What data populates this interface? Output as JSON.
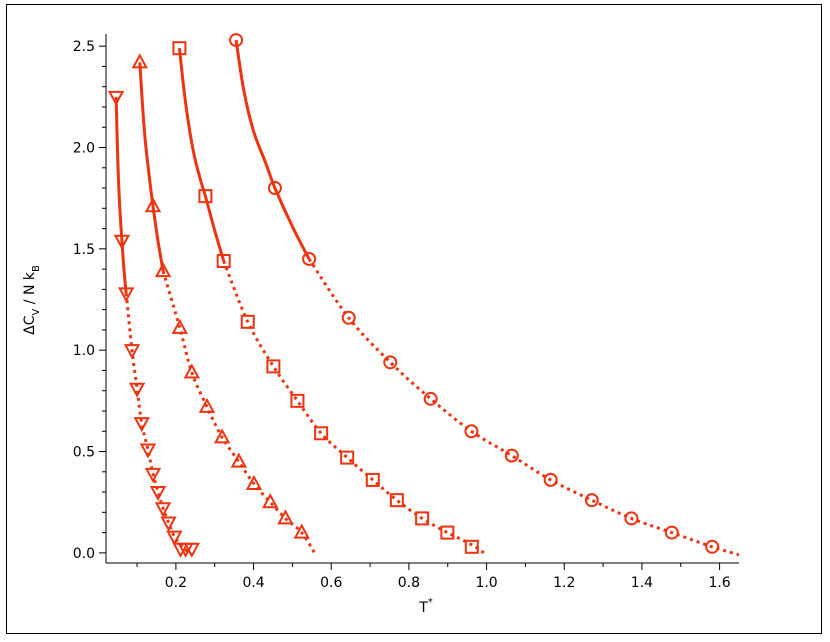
{
  "chart_data": {
    "type": "line",
    "title": "",
    "xlabel": "T*",
    "ylabel": "ΔC_V / N k_B",
    "xlim": [
      0.02,
      1.65
    ],
    "ylim": [
      -0.05,
      2.56
    ],
    "xticks": [
      0.2,
      0.4,
      0.6,
      0.8,
      1.0,
      1.2,
      1.4,
      1.6
    ],
    "xtick_labels": [
      "0.2",
      "0.4",
      "0.6",
      "0.8",
      "1.0",
      "1.2",
      "1.4",
      "1.6"
    ],
    "yticks": [
      0.0,
      0.5,
      1.0,
      1.5,
      2.0,
      2.5
    ],
    "ytick_labels": [
      "0.0",
      "0.5",
      "1.0",
      "1.5",
      "2.0",
      "2.5"
    ],
    "grid": false,
    "color": "#ee3311",
    "series": [
      {
        "marker": "triangle-down",
        "x": [
          0.046,
          0.061,
          0.072,
          0.087,
          0.1,
          0.112,
          0.128,
          0.141,
          0.154,
          0.167,
          0.181,
          0.196,
          0.212,
          0.225,
          0.241
        ],
        "y": [
          2.25,
          1.54,
          1.28,
          1.0,
          0.81,
          0.64,
          0.51,
          0.39,
          0.3,
          0.22,
          0.15,
          0.08,
          0.02,
          0.02,
          0.02
        ],
        "solid_curve": {
          "x": [
            0.046,
            0.05,
            0.055,
            0.061,
            0.066,
            0.072
          ],
          "y": [
            2.25,
            1.95,
            1.72,
            1.54,
            1.4,
            1.28
          ]
        },
        "dotted_curve": {
          "x": [
            0.072,
            0.087,
            0.1,
            0.112,
            0.128,
            0.141,
            0.154,
            0.167,
            0.181,
            0.196,
            0.212,
            0.225,
            0.241
          ],
          "y": [
            1.28,
            1.0,
            0.81,
            0.64,
            0.51,
            0.39,
            0.3,
            0.22,
            0.15,
            0.08,
            0.04,
            0.015,
            -0.01
          ]
        }
      },
      {
        "marker": "triangle-up",
        "x": [
          0.107,
          0.141,
          0.167,
          0.21,
          0.241,
          0.28,
          0.319,
          0.362,
          0.401,
          0.443,
          0.482,
          0.524
        ],
        "y": [
          2.42,
          1.71,
          1.39,
          1.11,
          0.89,
          0.72,
          0.57,
          0.45,
          0.34,
          0.25,
          0.17,
          0.1
        ],
        "solid_curve": {
          "x": [
            0.107,
            0.118,
            0.13,
            0.141,
            0.153,
            0.167
          ],
          "y": [
            2.42,
            2.1,
            1.88,
            1.71,
            1.55,
            1.39
          ]
        },
        "dotted_curve": {
          "x": [
            0.167,
            0.21,
            0.241,
            0.28,
            0.319,
            0.362,
            0.401,
            0.443,
            0.482,
            0.524,
            0.56
          ],
          "y": [
            1.39,
            1.11,
            0.89,
            0.72,
            0.57,
            0.45,
            0.34,
            0.25,
            0.17,
            0.1,
            -0.01
          ]
        }
      },
      {
        "marker": "square",
        "x": [
          0.209,
          0.276,
          0.323,
          0.385,
          0.451,
          0.513,
          0.574,
          0.641,
          0.707,
          0.769,
          0.834,
          0.899,
          0.962
        ],
        "y": [
          2.49,
          1.76,
          1.44,
          1.14,
          0.92,
          0.75,
          0.59,
          0.47,
          0.36,
          0.26,
          0.17,
          0.1,
          0.03
        ],
        "solid_curve": {
          "x": [
            0.209,
            0.225,
            0.245,
            0.265,
            0.276,
            0.3,
            0.323
          ],
          "y": [
            2.49,
            2.22,
            1.98,
            1.83,
            1.76,
            1.59,
            1.44
          ]
        },
        "dotted_curve": {
          "x": [
            0.323,
            0.385,
            0.451,
            0.513,
            0.574,
            0.641,
            0.707,
            0.769,
            0.834,
            0.899,
            0.962,
            1.0
          ],
          "y": [
            1.44,
            1.14,
            0.92,
            0.75,
            0.59,
            0.47,
            0.36,
            0.26,
            0.17,
            0.1,
            0.04,
            -0.01
          ]
        }
      },
      {
        "marker": "circle",
        "x": [
          0.355,
          0.455,
          0.543,
          0.645,
          0.752,
          0.856,
          0.961,
          1.065,
          1.165,
          1.271,
          1.373,
          1.477,
          1.581
        ],
        "y": [
          2.53,
          1.8,
          1.45,
          1.16,
          0.94,
          0.76,
          0.6,
          0.48,
          0.36,
          0.26,
          0.17,
          0.1,
          0.03
        ],
        "solid_curve": {
          "x": [
            0.355,
            0.375,
            0.4,
            0.43,
            0.455,
            0.5,
            0.543
          ],
          "y": [
            2.53,
            2.28,
            2.08,
            1.93,
            1.8,
            1.61,
            1.45
          ]
        },
        "dotted_curve": {
          "x": [
            0.543,
            0.645,
            0.752,
            0.856,
            0.961,
            1.065,
            1.165,
            1.271,
            1.373,
            1.477,
            1.581,
            1.65
          ],
          "y": [
            1.45,
            1.16,
            0.94,
            0.76,
            0.6,
            0.48,
            0.36,
            0.26,
            0.17,
            0.1,
            0.03,
            -0.01
          ]
        }
      }
    ]
  }
}
